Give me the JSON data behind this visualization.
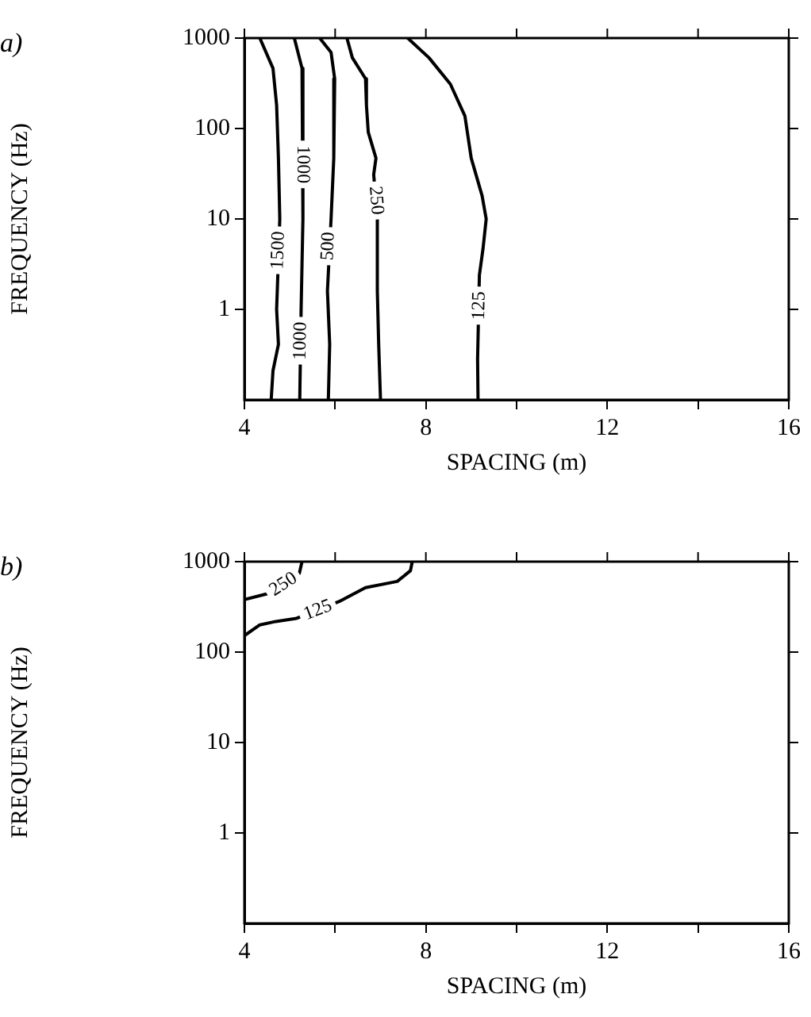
{
  "chart_data": [
    {
      "type": "line",
      "title": "a)",
      "xlabel": "SPACING (m)",
      "ylabel": "FREQUENCY (Hz)",
      "log": "y",
      "grid": false,
      "legend": false,
      "marker": "none",
      "line_style": "solid",
      "xlim": [
        4,
        16
      ],
      "xticks": [
        4,
        {
          "value": 6,
          "label": null
        },
        8,
        {
          "value": 10,
          "label": null
        },
        12,
        {
          "value": 14,
          "label": null
        },
        16
      ],
      "ylim": [
        0.1,
        1000
      ],
      "yticks": [
        1,
        10,
        100,
        1000
      ],
      "series": [
        {
          "color": "#000000",
          "x": [
            4.34,
            4.63,
            4.71,
            4.75,
            4.78,
            4.71,
            4.75,
            4.63,
            4.59
          ],
          "values": [
            1000,
            463,
            181,
            47,
            10,
            1,
            0.41,
            0.21,
            0.1
          ]
        },
        {
          "color": "#000000",
          "x": [
            5.1,
            5.27,
            5.29,
            5.29,
            5.25,
            5.22
          ],
          "values": [
            1000,
            463,
            91,
            10,
            1,
            0.1
          ]
        },
        {
          "color": "#000000",
          "x": [
            5.66,
            5.91,
            5.99,
            5.97,
            5.91,
            5.83,
            5.88,
            5.85
          ],
          "values": [
            1000,
            695,
            355,
            47,
            10,
            1.6,
            0.41,
            0.1
          ]
        },
        {
          "color": "#000000",
          "x": [
            6.26,
            6.38,
            6.67,
            6.69,
            6.73,
            6.9,
            6.85,
            6.93,
            6.93,
            6.96,
            7.0
          ],
          "values": [
            1000,
            605,
            355,
            181,
            91,
            47,
            31,
            10,
            1.6,
            0.41,
            0.1
          ]
        },
        {
          "color": "#000000",
          "x": [
            7.6,
            8.07,
            8.54,
            8.86,
            9.0,
            9.24,
            9.33,
            9.26,
            9.18,
            9.14,
            9.15
          ],
          "values": [
            1000,
            605,
            310,
            138,
            47,
            18,
            10,
            4.7,
            2.4,
            0.28,
            0.1
          ]
        }
      ],
      "annotations": [
        {
          "text": "1500",
          "x": 4.75,
          "y": 4.5
        },
        {
          "text": "1000",
          "x": 5.29,
          "y": 40
        },
        {
          "text": "1000",
          "x": 5.24,
          "y": 0.45
        },
        {
          "text": "500",
          "x": 5.85,
          "y": 5
        },
        {
          "text": "250",
          "x": 6.9,
          "y": 16
        },
        {
          "text": "125",
          "x": 9.18,
          "y": 1.1
        }
      ]
    },
    {
      "type": "line",
      "title": "b)",
      "xlabel": "SPACING (m)",
      "ylabel": "FREQUENCY (Hz)",
      "log": "y",
      "grid": false,
      "legend": false,
      "marker": "none",
      "line_style": "solid",
      "xlim": [
        4,
        16
      ],
      "xticks": [
        4,
        {
          "value": 6,
          "label": null
        },
        8,
        {
          "value": 10,
          "label": null
        },
        12,
        {
          "value": 14,
          "label": null
        },
        16
      ],
      "ylim": [
        0.1,
        1000
      ],
      "yticks": [
        1,
        10,
        100,
        1000
      ],
      "series": [
        {
          "color": "#000000",
          "x": [
            4.0,
            4.57,
            4.86,
            5.21,
            5.27
          ],
          "values": [
            380,
            450,
            560,
            740,
            1000
          ]
        },
        {
          "color": "#000000",
          "x": [
            4.0,
            4.34,
            4.69,
            5.15,
            5.62,
            6.09,
            6.67,
            7.37,
            7.66,
            7.7
          ],
          "values": [
            152,
            200,
            218,
            236,
            290,
            363,
            516,
            605,
            795,
            1000
          ]
        }
      ],
      "annotations": [
        {
          "text": "250",
          "x": 4.86,
          "y": 560
        },
        {
          "text": "125",
          "x": 5.62,
          "y": 290
        }
      ]
    }
  ]
}
